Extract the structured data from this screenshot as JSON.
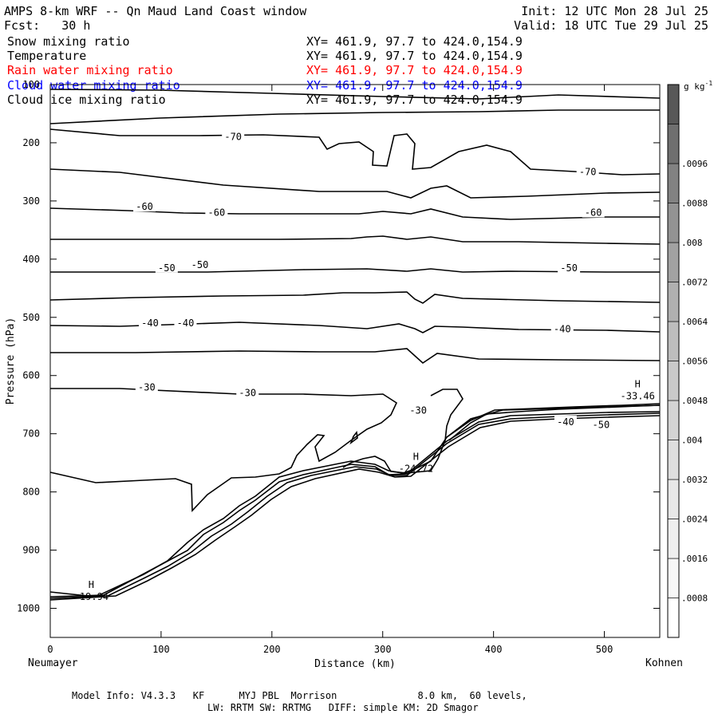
{
  "header": {
    "title": "AMPS 8-km WRF -- Qn Maud Land Coast window",
    "fcst": "Fcst:   30 h",
    "init": "Init: 12 UTC Mon 28 Jul 25",
    "valid": "Valid: 18 UTC Tue 29 Jul 25",
    "fields": [
      {
        "name": "Snow mixing ratio",
        "xy": "XY= 461.9, 97.7 to 424.0,154.9",
        "color": "#000000"
      },
      {
        "name": "Temperature",
        "xy": "XY= 461.9, 97.7 to 424.0,154.9",
        "color": "#000000"
      },
      {
        "name": "Rain water mixing ratio",
        "xy": "XY= 461.9, 97.7 to 424.0,154.9",
        "color": "#ff0000"
      },
      {
        "name": "Cloud water mixing ratio",
        "xy": "XY= 461.9, 97.7 to 424.0,154.9",
        "color": "#0000ff"
      },
      {
        "name": "Cloud ice mixing ratio",
        "xy": "XY= 461.9, 97.7 to 424.0,154.9",
        "color": "#000000"
      }
    ]
  },
  "footer": {
    "line1": "Model Info: V4.3.3   KF      MYJ PBL  Morrison              8.0 km,  60 levels,",
    "line2": "LW: RRTM SW: RRTMG   DIFF: simple KM: 2D Smagor"
  },
  "chart_data": {
    "type": "contour",
    "xlabel": "Distance (km)",
    "ylabel": "Pressure (hPa)",
    "xlim": [
      0,
      550
    ],
    "ylim": [
      1050,
      100
    ],
    "x_ticks": [
      0,
      100,
      200,
      300,
      400,
      500
    ],
    "y_ticks": [
      100,
      200,
      300,
      400,
      500,
      600,
      700,
      800,
      900,
      1000
    ],
    "left_endpoint": "Neumayer",
    "right_endpoint": "Kohnen",
    "colorbar": {
      "unit": "g kg-1",
      "levels": [
        ".0008",
        ".0016",
        ".0024",
        ".0032",
        ".004",
        ".0048",
        ".0056",
        ".0064",
        ".0072",
        ".008",
        ".0088",
        ".0096"
      ],
      "colors": [
        "#ffffff",
        "#f7f7f7",
        "#efefef",
        "#e7e7e7",
        "#dedede",
        "#d4d4d4",
        "#c9c9c9",
        "#bdbdbd",
        "#b0b0b0",
        "#a2a2a2",
        "#939393",
        "#828282",
        "#6f6f6f",
        "#585858"
      ]
    },
    "contour_labels": [
      {
        "text": "-70",
        "x": 165,
        "p": 190
      },
      {
        "text": "-70",
        "x": 485,
        "p": 250
      },
      {
        "text": "-60",
        "x": 85,
        "p": 310
      },
      {
        "text": "-60",
        "x": 150,
        "p": 320
      },
      {
        "text": "-60",
        "x": 490,
        "p": 320
      },
      {
        "text": "-50",
        "x": 105,
        "p": 415
      },
      {
        "text": "-50",
        "x": 135,
        "p": 410
      },
      {
        "text": "-50",
        "x": 468,
        "p": 415
      },
      {
        "text": "-40",
        "x": 90,
        "p": 510
      },
      {
        "text": "-40",
        "x": 122,
        "p": 510
      },
      {
        "text": "-40",
        "x": 462,
        "p": 520
      },
      {
        "text": "-30",
        "x": 87,
        "p": 620
      },
      {
        "text": "-30",
        "x": 178,
        "p": 630
      },
      {
        "text": "-30",
        "x": 332,
        "p": 660
      },
      {
        "text": "-40",
        "x": 465,
        "p": 680
      },
      {
        "text": "-50",
        "x": 497,
        "p": 685
      }
    ],
    "extrema": [
      {
        "text": "H",
        "value": "-33.46",
        "x": 530,
        "p": 620
      },
      {
        "text": "H",
        "value": "-24.72",
        "x": 330,
        "p": 745
      },
      {
        "text": "H",
        "value": "-19.94",
        "x": 37,
        "p": 965
      }
    ]
  }
}
